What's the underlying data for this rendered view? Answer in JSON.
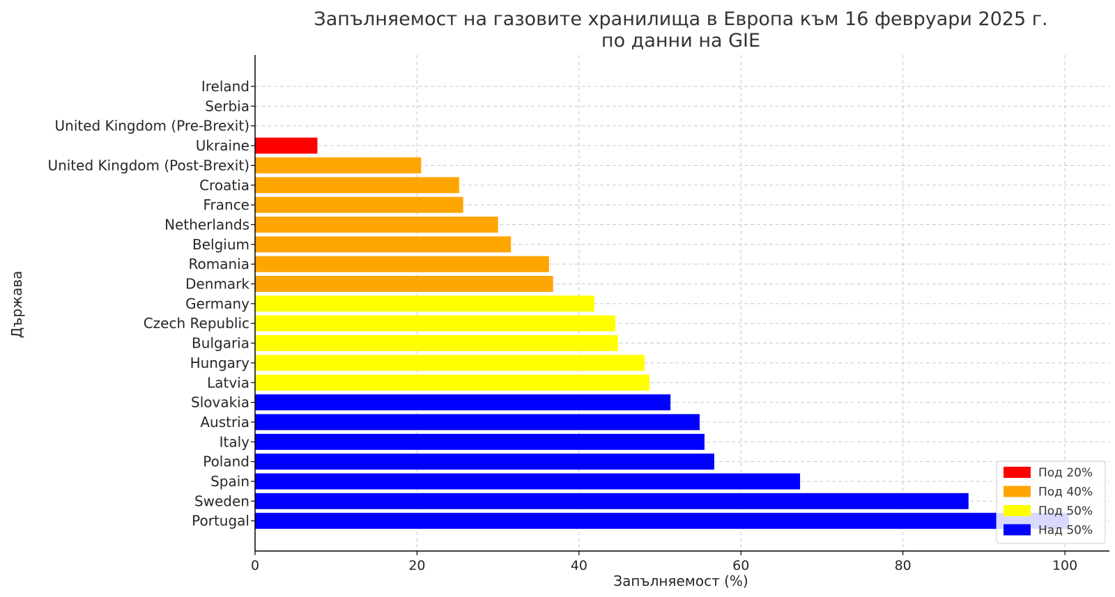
{
  "chart_data": {
    "type": "bar",
    "orientation": "horizontal",
    "title": "Запълняемост на газовите хранилища в Европа към 16 февруари 2025 г.",
    "subtitle": "по данни на GIE",
    "xlabel": "Запълняемост (%)",
    "ylabel": "Държава",
    "xlim": [
      0,
      105.5
    ],
    "xticks": [
      "0",
      "20",
      "40",
      "60",
      "80",
      "100"
    ],
    "xtick_values": [
      0,
      20,
      40,
      60,
      80,
      100
    ],
    "grid": true,
    "legend_position": "lower-right",
    "categories": [
      "Ireland",
      "Serbia",
      "United Kingdom (Pre-Brexit)",
      "Ukraine",
      "United Kingdom (Post-Brexit)",
      "Croatia",
      "France",
      "Netherlands",
      "Belgium",
      "Romania",
      "Denmark",
      "Germany",
      "Czech Republic",
      "Bulgaria",
      "Hungary",
      "Latvia",
      "Slovakia",
      "Austria",
      "Italy",
      "Poland",
      "Spain",
      "Sweden",
      "Portugal"
    ],
    "values": [
      0,
      0,
      0,
      7.7,
      20.5,
      25.2,
      25.7,
      30.0,
      31.6,
      36.3,
      36.8,
      41.9,
      44.5,
      44.8,
      48.1,
      48.7,
      51.3,
      54.9,
      55.5,
      56.7,
      67.3,
      88.1,
      100.5
    ],
    "bar_groups": [
      null,
      null,
      null,
      "Под 20%",
      "Под 40%",
      "Под 40%",
      "Под 40%",
      "Под 40%",
      "Под 40%",
      "Под 40%",
      "Под 40%",
      "Под 50%",
      "Под 50%",
      "Под 50%",
      "Под 50%",
      "Под 50%",
      "Над 50%",
      "Над 50%",
      "Над 50%",
      "Над 50%",
      "Над 50%",
      "Над 50%",
      "Над 50%"
    ],
    "legend": [
      {
        "label": "Под 20%",
        "color": "#ff0000"
      },
      {
        "label": "Под 40%",
        "color": "#ffa500"
      },
      {
        "label": "Под 50%",
        "color": "#ffff00"
      },
      {
        "label": "Над 50%",
        "color": "#0000ff"
      }
    ]
  }
}
